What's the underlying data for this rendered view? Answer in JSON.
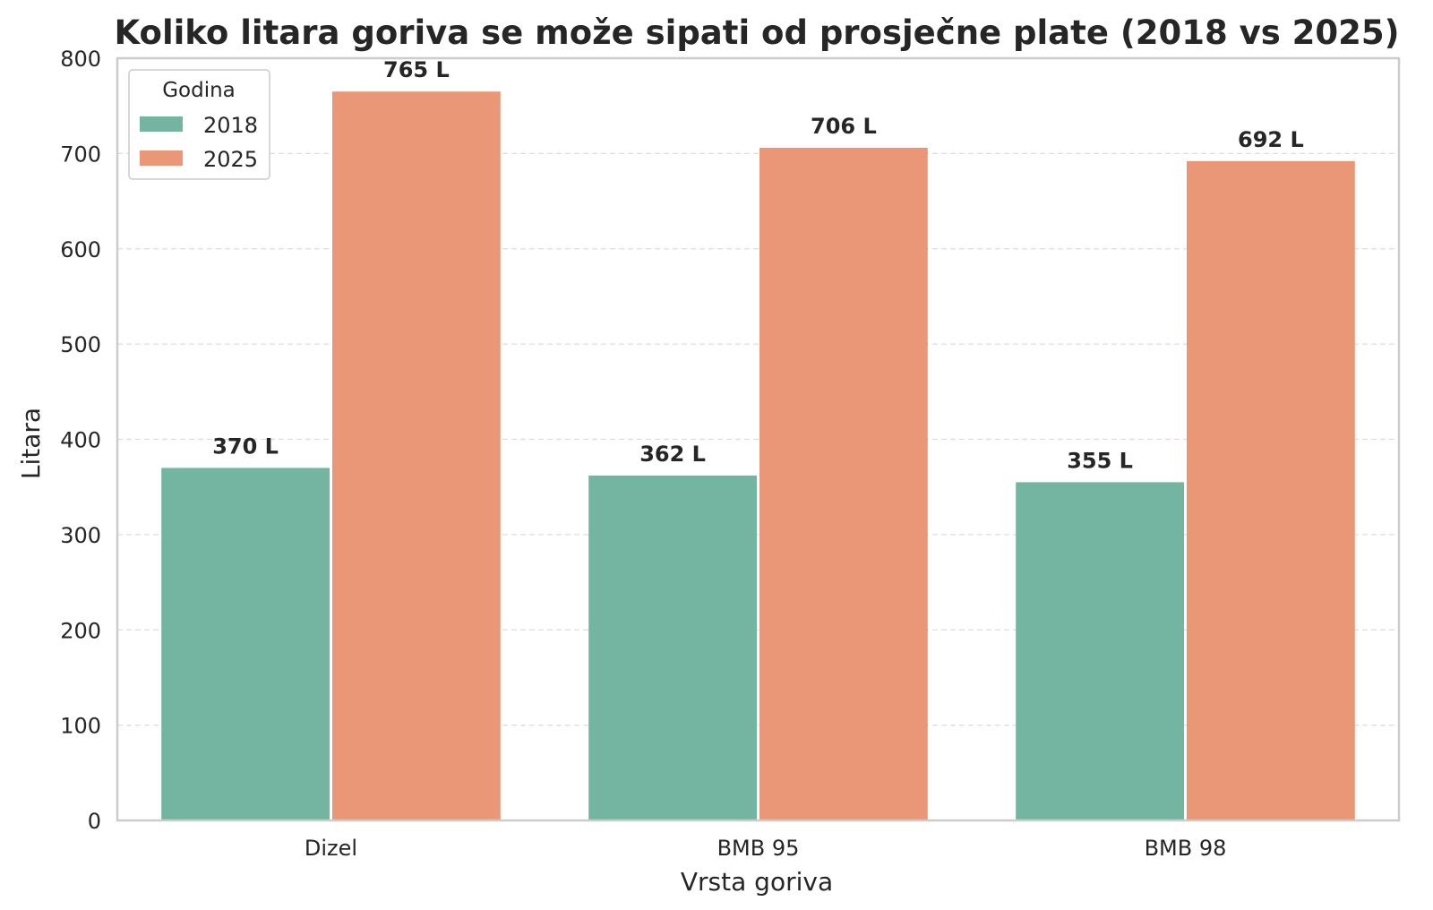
{
  "chart_data": {
    "type": "bar",
    "title": "Koliko litara goriva se može sipati od prosječne plate (2018 vs 2025)",
    "xlabel": "Vrsta goriva",
    "ylabel": "Litara",
    "categories": [
      "Dizel",
      "BMB 95",
      "BMB 98"
    ],
    "series": [
      {
        "name": "2018",
        "color": "#74b5a1",
        "values": [
          370,
          362,
          355
        ],
        "labels": [
          "370 L",
          "362 L",
          "355 L"
        ]
      },
      {
        "name": "2025",
        "color": "#e99776",
        "values": [
          765,
          706,
          692
        ],
        "labels": [
          "765 L",
          "706 L",
          "692 L"
        ]
      }
    ],
    "ylim": [
      0,
      800
    ],
    "yticks": [
      0,
      100,
      200,
      300,
      400,
      500,
      600,
      700,
      800
    ],
    "grid": true,
    "legend": {
      "title": "Godina",
      "placement": "top-left"
    }
  }
}
